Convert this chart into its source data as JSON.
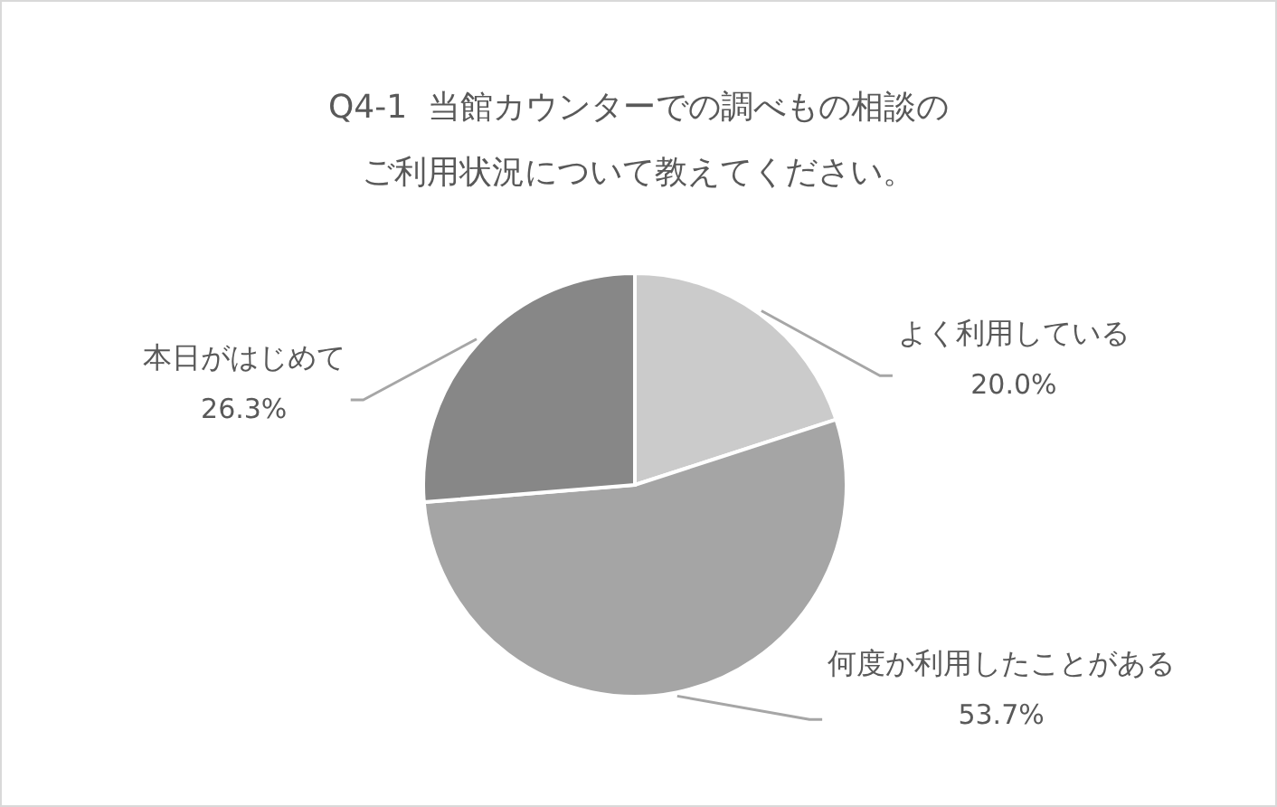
{
  "chart_data": {
    "type": "pie",
    "title": "Q4-1  当館カウンターでの調べもの相談のご利用状況について教えてください。",
    "categories": [
      "よく利用している",
      "何度か利用したことがある",
      "本日がはじめて"
    ],
    "values": [
      20.0,
      53.7,
      26.3
    ],
    "colors": [
      "#cbcbcb",
      "#a5a5a5",
      "#878787"
    ],
    "value_labels": [
      "20.0%",
      "53.7%",
      "26.3%"
    ]
  }
}
